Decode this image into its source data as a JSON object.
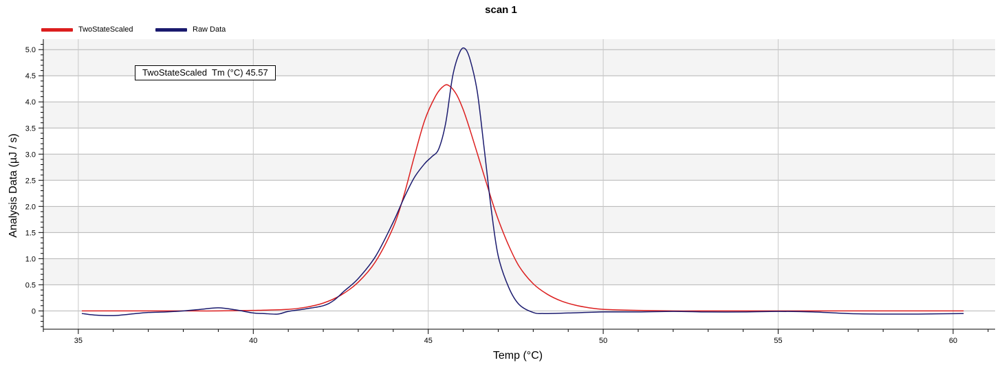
{
  "chart_data": {
    "type": "line",
    "title": "scan 1",
    "xlabel": "Temp (°C)",
    "ylabel": "Analysis Data (µJ / s)",
    "xlim": [
      34,
      61.2
    ],
    "ylim": [
      -0.35,
      5.2
    ],
    "xticks": [
      35,
      40,
      45,
      50,
      55,
      60
    ],
    "yticks": [
      0,
      0.5,
      1.0,
      1.5,
      2.0,
      2.5,
      3.0,
      3.5,
      4.0,
      4.5,
      5.0
    ],
    "ytick_labels": [
      "0",
      "0.5",
      "1.0",
      "1.5",
      "2.0",
      "2.5",
      "3.0",
      "3.5",
      "4.0",
      "4.5",
      "5.0"
    ],
    "grid": true,
    "legend_position": "top-left",
    "annotation": {
      "name": "TwoStateScaled",
      "label": "Tm (°C)",
      "value": "45.57"
    },
    "series": [
      {
        "name": "TwoStateScaled",
        "color": "#dc1e1e",
        "x": [
          35.1,
          36,
          37,
          38,
          39,
          40,
          41,
          41.5,
          42,
          42.5,
          43,
          43.5,
          44,
          44.3,
          44.6,
          44.9,
          45.2,
          45.4,
          45.57,
          45.8,
          46,
          46.2,
          46.5,
          46.8,
          47,
          47.3,
          47.6,
          48,
          48.4,
          48.8,
          49.2,
          49.6,
          50,
          51,
          52,
          53,
          55,
          58,
          60.3
        ],
        "y": [
          0,
          0,
          0,
          0,
          0,
          0.01,
          0.03,
          0.07,
          0.15,
          0.3,
          0.55,
          0.95,
          1.6,
          2.2,
          2.95,
          3.65,
          4.1,
          4.28,
          4.32,
          4.15,
          3.85,
          3.45,
          2.8,
          2.15,
          1.75,
          1.25,
          0.85,
          0.52,
          0.32,
          0.19,
          0.11,
          0.06,
          0.03,
          0.01,
          0,
          0,
          0,
          0,
          0
        ]
      },
      {
        "name": "Raw Data",
        "color": "#1a1a6e",
        "x": [
          35.1,
          35.5,
          36,
          36.5,
          37,
          37.5,
          38,
          38.5,
          39,
          39.5,
          40,
          40.3,
          40.7,
          41,
          41.5,
          42,
          42.3,
          42.6,
          43,
          43.5,
          44,
          44.3,
          44.6,
          44.9,
          45.1,
          45.3,
          45.5,
          45.7,
          45.9,
          46.05,
          46.2,
          46.4,
          46.6,
          46.8,
          47,
          47.3,
          47.6,
          48,
          48.3,
          49,
          50,
          51,
          52,
          53,
          54,
          55,
          56,
          57,
          58,
          59,
          60.3
        ],
        "y": [
          -0.05,
          -0.08,
          -0.09,
          -0.06,
          -0.03,
          -0.02,
          0,
          0.03,
          0.06,
          0.02,
          -0.04,
          -0.05,
          -0.06,
          -0.01,
          0.04,
          0.1,
          0.2,
          0.38,
          0.62,
          1.05,
          1.7,
          2.15,
          2.55,
          2.82,
          2.95,
          3.1,
          3.6,
          4.5,
          4.95,
          5.02,
          4.8,
          4.2,
          3.1,
          1.95,
          1.05,
          0.45,
          0.12,
          -0.03,
          -0.05,
          -0.04,
          -0.02,
          -0.02,
          -0.01,
          -0.02,
          -0.02,
          -0.01,
          -0.02,
          -0.05,
          -0.06,
          -0.06,
          -0.05
        ]
      }
    ]
  }
}
